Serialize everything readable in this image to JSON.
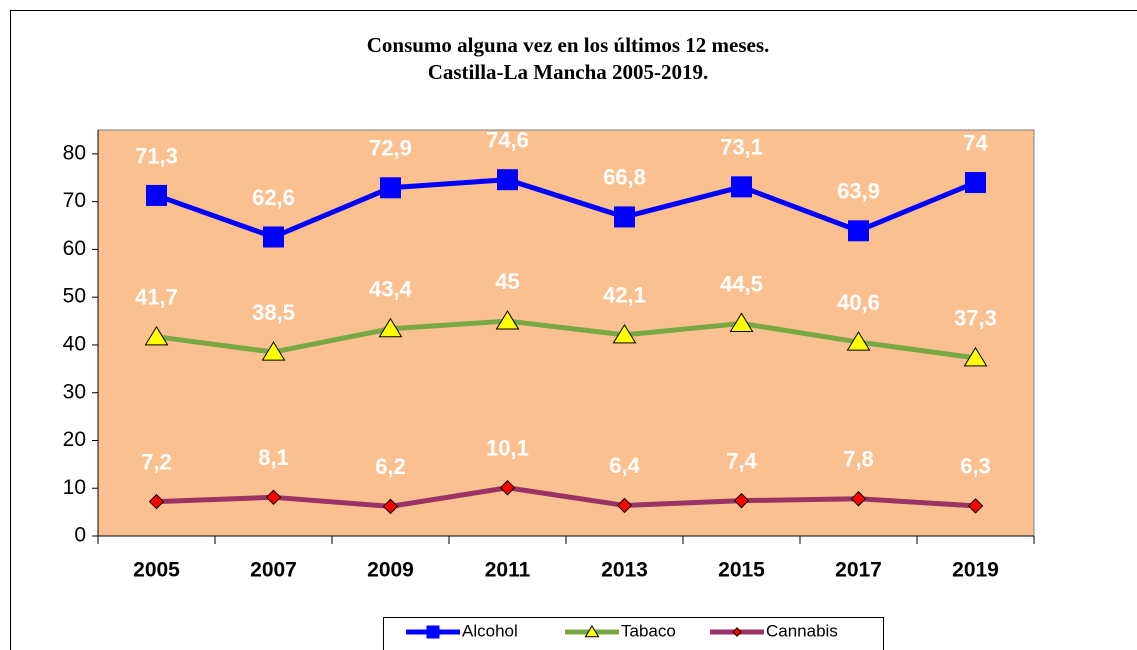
{
  "chart_data": {
    "type": "line",
    "title": [
      "Consumo alguna vez en los últimos 12 meses.",
      "Castilla-La Mancha 2005-2019."
    ],
    "categories": [
      "2005",
      "2007",
      "2009",
      "2011",
      "2013",
      "2015",
      "2017",
      "2019"
    ],
    "series": [
      {
        "name": "Alcohol",
        "color": "#0000ff",
        "marker": "square",
        "marker_color": "#0000ff",
        "values": [
          71.3,
          62.6,
          72.9,
          74.6,
          66.8,
          73.1,
          63.9,
          74
        ],
        "value_labels": [
          "71,3",
          "62,6",
          "72,9",
          "74,6",
          "66,8",
          "73,1",
          "63,9",
          "74"
        ]
      },
      {
        "name": "Tabaco",
        "color": "#77a844",
        "marker": "triangle",
        "marker_color": "#ffff00",
        "values": [
          41.7,
          38.5,
          43.4,
          45,
          42.1,
          44.5,
          40.6,
          37.3
        ],
        "value_labels": [
          "41,7",
          "38,5",
          "43,4",
          "45",
          "42,1",
          "44,5",
          "40,6",
          "37,3"
        ]
      },
      {
        "name": "Cannabis",
        "color": "#993366",
        "marker": "diamond",
        "marker_color": "#ff0000",
        "values": [
          7.2,
          8.1,
          6.2,
          10.1,
          6.4,
          7.4,
          7.8,
          6.3
        ],
        "value_labels": [
          "7,2",
          "8,1",
          "6,2",
          "10,1",
          "6,4",
          "7,4",
          "7,8",
          "6,3"
        ]
      }
    ],
    "ylim": [
      0,
      85
    ],
    "yticks": [
      0,
      10,
      20,
      30,
      40,
      50,
      60,
      70,
      80
    ],
    "plot_background": "#fac090",
    "legend": "bottom"
  }
}
